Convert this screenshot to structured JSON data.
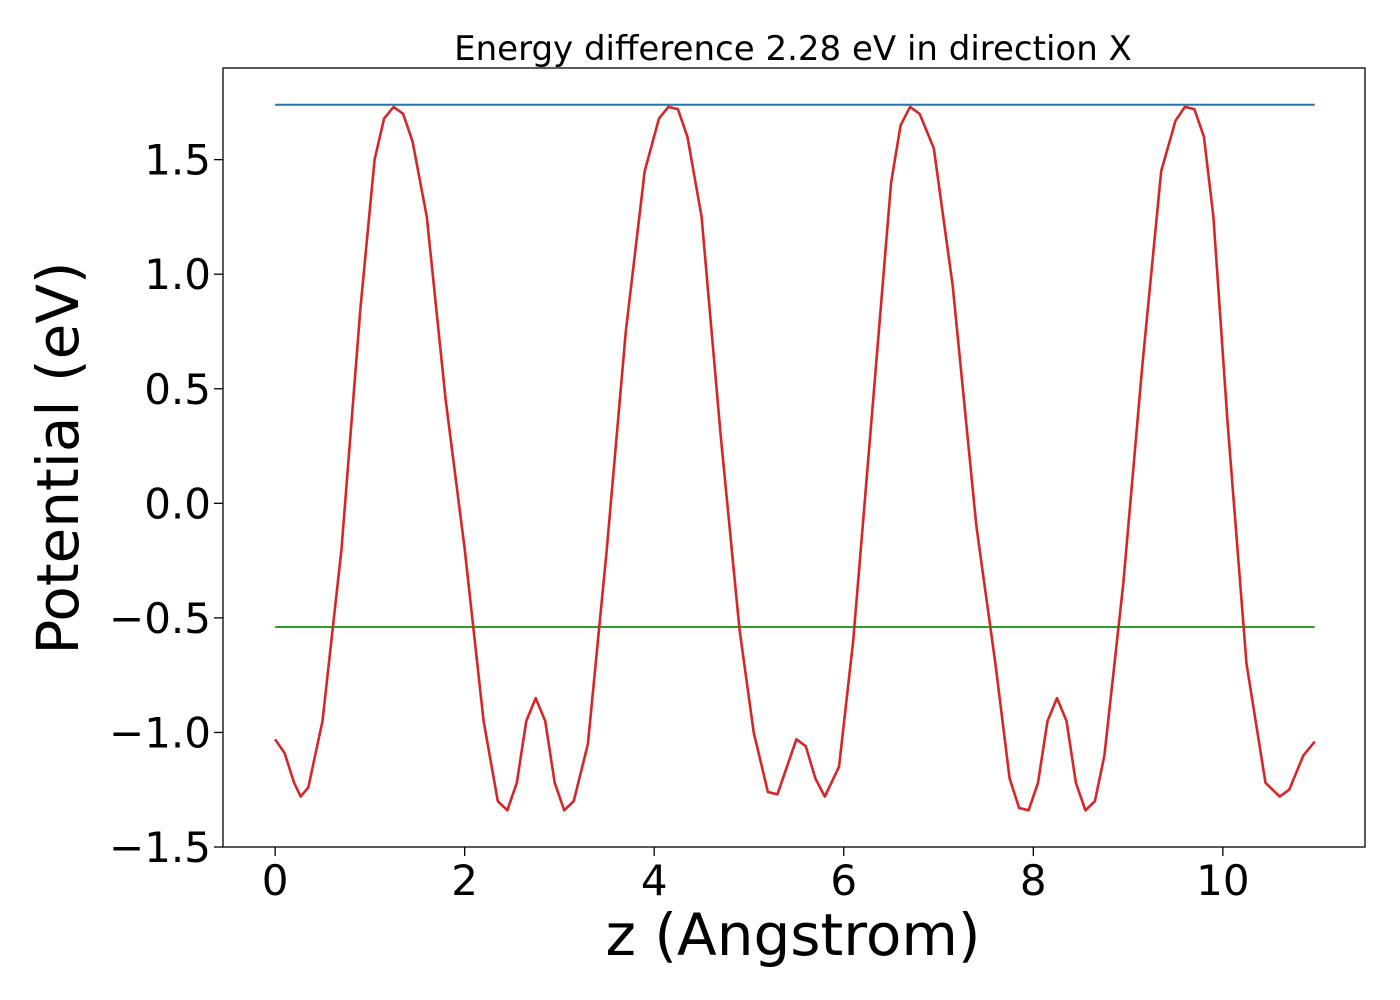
{
  "chart_data": {
    "type": "line",
    "title": "Energy difference 2.28 eV in direction X",
    "xlabel": "z (Angstrom)",
    "ylabel": "Potential (eV)",
    "xlim": [
      -0.55,
      11.5
    ],
    "ylim": [
      -1.5,
      1.9
    ],
    "xticks": [
      0,
      2,
      4,
      6,
      8,
      10
    ],
    "yticks": [
      -1.5,
      -1.0,
      -0.5,
      0.0,
      0.5,
      1.0,
      1.5
    ],
    "xtick_labels": [
      "0",
      "2",
      "4",
      "6",
      "8",
      "10"
    ],
    "ytick_labels": [
      "−1.5",
      "−1.0",
      "−0.5",
      "0.0",
      "0.5",
      "1.0",
      "1.5"
    ],
    "grid": false,
    "series": [
      {
        "color": "#1f77b4",
        "x": [
          0,
          10.97
        ],
        "y": [
          1.74,
          1.74
        ]
      },
      {
        "color": "#2ca02c",
        "x": [
          0,
          10.97
        ],
        "y": [
          -0.54,
          -0.54
        ]
      },
      {
        "color": "#d62728",
        "x": [
          0.0,
          0.1,
          0.2,
          0.27,
          0.35,
          0.5,
          0.7,
          0.9,
          1.05,
          1.15,
          1.25,
          1.35,
          1.45,
          1.6,
          1.8,
          2.0,
          2.2,
          2.35,
          2.45,
          2.55,
          2.65,
          2.75,
          2.85,
          2.95,
          3.05,
          3.15,
          3.3,
          3.5,
          3.7,
          3.9,
          4.05,
          4.15,
          4.25,
          4.35,
          4.5,
          4.7,
          4.9,
          5.05,
          5.2,
          5.3,
          5.4,
          5.5,
          5.6,
          5.7,
          5.8,
          5.95,
          6.1,
          6.3,
          6.5,
          6.6,
          6.7,
          6.8,
          6.95,
          7.15,
          7.4,
          7.6,
          7.75,
          7.85,
          7.95,
          8.05,
          8.15,
          8.25,
          8.35,
          8.45,
          8.55,
          8.65,
          8.75,
          8.95,
          9.15,
          9.35,
          9.5,
          9.6,
          9.7,
          9.8,
          9.9,
          10.05,
          10.25,
          10.45,
          10.6,
          10.7,
          10.78,
          10.85,
          10.97
        ],
        "y": [
          -1.03,
          -1.09,
          -1.22,
          -1.28,
          -1.24,
          -0.95,
          -0.2,
          0.85,
          1.5,
          1.68,
          1.73,
          1.7,
          1.58,
          1.25,
          0.45,
          -0.2,
          -0.95,
          -1.3,
          -1.34,
          -1.22,
          -0.95,
          -0.85,
          -0.95,
          -1.22,
          -1.34,
          -1.3,
          -1.05,
          -0.2,
          0.75,
          1.45,
          1.68,
          1.73,
          1.72,
          1.6,
          1.25,
          0.3,
          -0.55,
          -1.0,
          -1.26,
          -1.27,
          -1.15,
          -1.03,
          -1.06,
          -1.2,
          -1.28,
          -1.15,
          -0.6,
          0.4,
          1.4,
          1.65,
          1.73,
          1.7,
          1.55,
          0.95,
          -0.1,
          -0.7,
          -1.2,
          -1.33,
          -1.34,
          -1.22,
          -0.95,
          -0.85,
          -0.95,
          -1.22,
          -1.34,
          -1.3,
          -1.1,
          -0.35,
          0.6,
          1.45,
          1.67,
          1.73,
          1.72,
          1.6,
          1.25,
          0.35,
          -0.7,
          -1.22,
          -1.28,
          -1.25,
          -1.17,
          -1.1,
          -1.04
        ]
      }
    ]
  }
}
